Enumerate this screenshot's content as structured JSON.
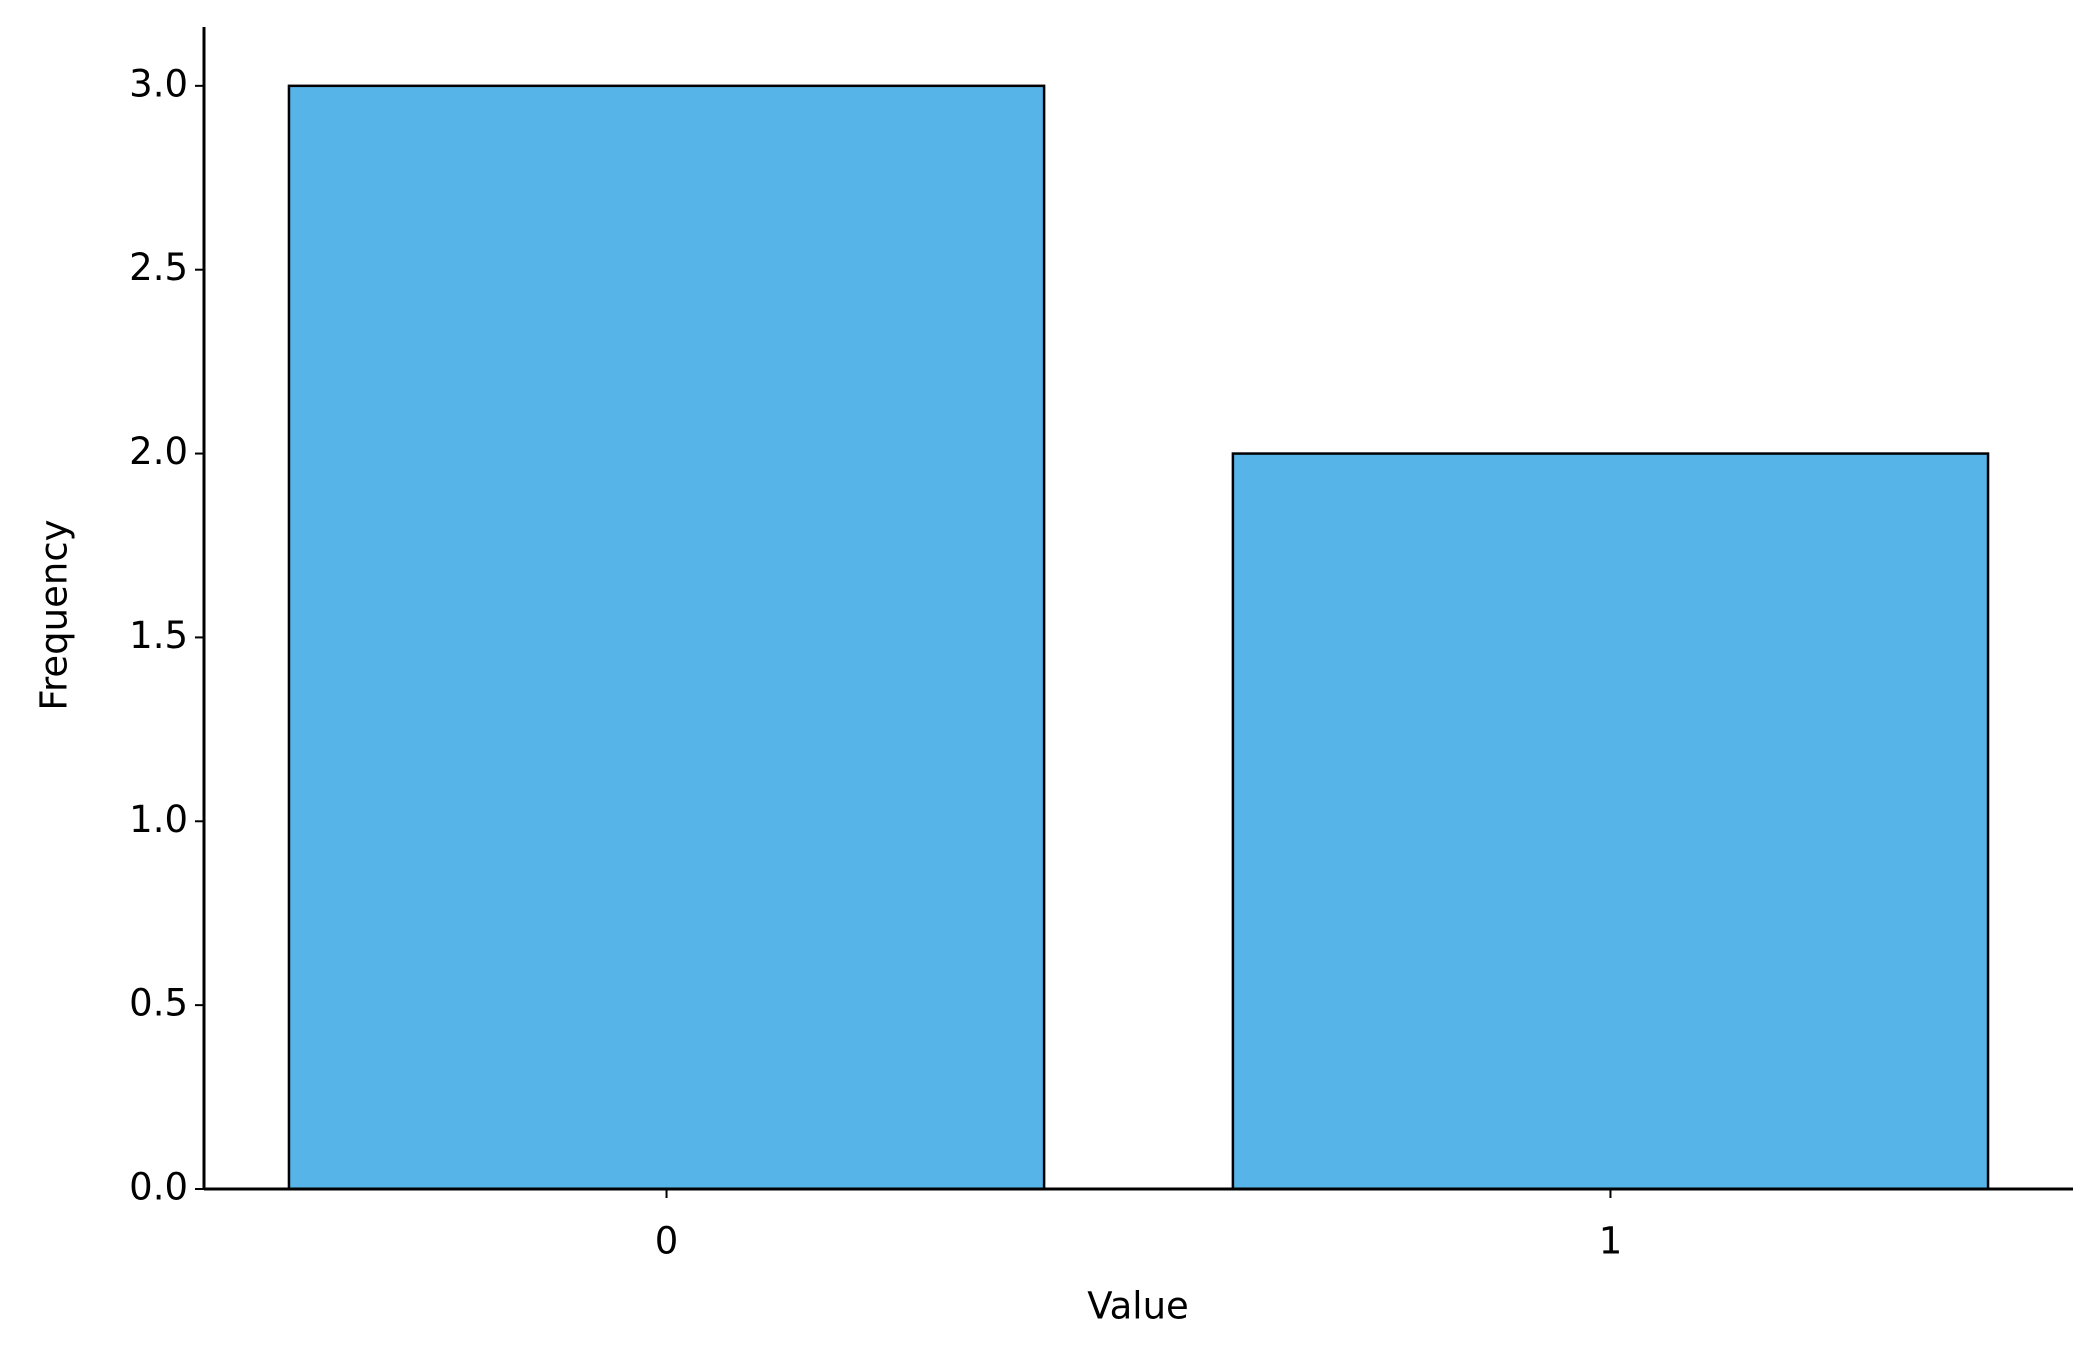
{
  "chart_data": {
    "type": "bar",
    "x_label": "Value",
    "y_label": "Frequency",
    "categories": [
      "0",
      "1"
    ],
    "values": [
      3,
      2
    ],
    "color": "#56b4e9",
    "edgecolor": "#000000",
    "ylim": [
      0,
      3.16
    ],
    "yticks": [
      {
        "value": 0,
        "label": "0.0"
      },
      {
        "value": 0.5,
        "label": "0.5"
      },
      {
        "value": 1,
        "label": "1.0"
      },
      {
        "value": 1.5,
        "label": "1.5"
      },
      {
        "value": 2,
        "label": "2.0"
      },
      {
        "value": 2.5,
        "label": "2.5"
      },
      {
        "value": 3,
        "label": "3.0"
      }
    ],
    "grid": false
  }
}
